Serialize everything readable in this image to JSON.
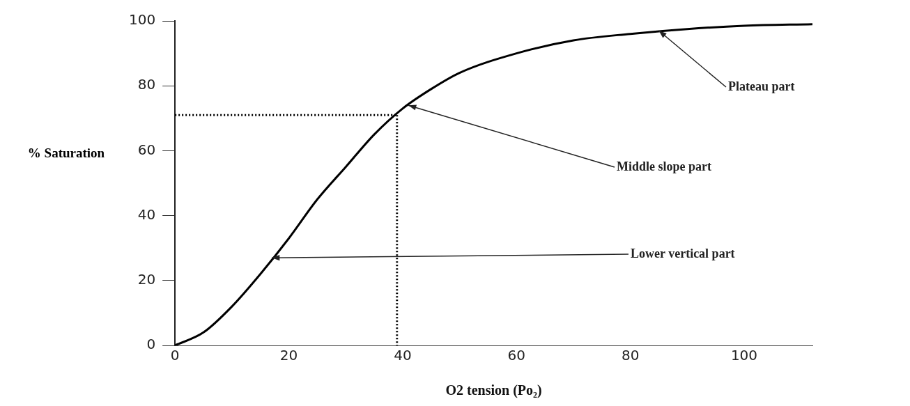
{
  "chart_data": {
    "type": "line",
    "xlabel": "O2 tension (Po₂)",
    "ylabel": "% Saturation",
    "xlim": [
      0,
      112
    ],
    "xticks": [
      0,
      20,
      40,
      60,
      80,
      100
    ],
    "ylim": [
      0,
      100
    ],
    "yticks": [
      0,
      20,
      40,
      60,
      80,
      100
    ],
    "grid": false,
    "legend": false,
    "marker": "none",
    "series": [
      {
        "color": "#000000",
        "line_style": "solid",
        "x": [
          0,
          5,
          10,
          15,
          20,
          25,
          30,
          35,
          40,
          45,
          50,
          60,
          70,
          80,
          90,
          100,
          112
        ],
        "values": [
          0,
          4,
          12,
          22,
          33,
          45,
          55,
          65,
          73,
          79,
          84,
          90,
          94,
          96,
          97.5,
          98.5,
          99
        ]
      },
      {
        "color": "#000000",
        "line_style": "dotted",
        "x": [
          0,
          39
        ],
        "values": [
          71,
          71
        ]
      },
      {
        "color": "#000000",
        "line_style": "dotted",
        "x": [
          39,
          39
        ],
        "values": [
          71,
          0
        ]
      }
    ],
    "annotations": [
      {
        "text": "Plateau part",
        "x": 85,
        "y": 97
      },
      {
        "text": "Middle slope part",
        "x": 41,
        "y": 74
      },
      {
        "text": "Lower vertical part",
        "x": 17,
        "y": 27
      }
    ]
  }
}
